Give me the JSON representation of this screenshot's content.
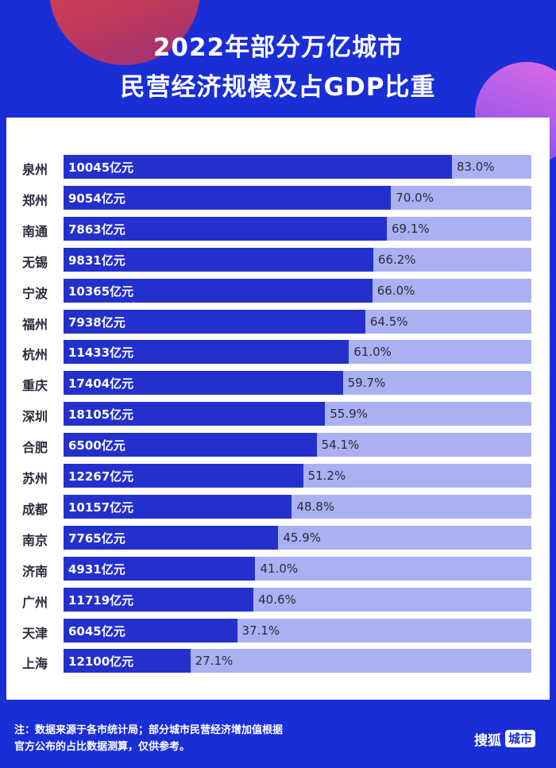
{
  "header": {
    "title_line1": "2022年部分万亿城市",
    "title_line2": "民营经济规模及占GDP比重"
  },
  "chart_data": {
    "type": "bar",
    "orientation": "horizontal",
    "title": "2022年部分万亿城市民营经济规模及占GDP比重",
    "value_unit": "%",
    "scale_max": 100,
    "categories": [
      "泉州",
      "郑州",
      "南通",
      "无锡",
      "宁波",
      "福州",
      "杭州",
      "重庆",
      "深圳",
      "合肥",
      "苏州",
      "成都",
      "南京",
      "济南",
      "广州",
      "天津",
      "上海"
    ],
    "values": [
      83.0,
      70.0,
      69.1,
      66.2,
      66.0,
      64.5,
      61.0,
      59.7,
      55.9,
      54.1,
      51.2,
      48.8,
      45.9,
      41.0,
      40.6,
      37.1,
      27.1
    ],
    "value_labels": [
      "83.0%",
      "70.0%",
      "69.1%",
      "66.2%",
      "66.0%",
      "64.5%",
      "61.0%",
      "59.7%",
      "55.9%",
      "54.1%",
      "51.2%",
      "48.8%",
      "45.9%",
      "41.0%",
      "40.6%",
      "37.1%",
      "27.1%"
    ],
    "bar_labels": [
      "10045亿元",
      "9054亿元",
      "7863亿元",
      "9831亿元",
      "10365亿元",
      "7938亿元",
      "11433亿元",
      "17404亿元",
      "18105亿元",
      "6500亿元",
      "12267亿元",
      "10157亿元",
      "7765亿元",
      "4931亿元",
      "11719亿元",
      "6045亿元",
      "12100亿元"
    ]
  },
  "footer": {
    "note_line1": "注：数据来源于各市统计局；部分城市民营经济增加值根据",
    "note_line2": "官方公布的占比数据测算，仅供参考。",
    "brand_name": "搜狐",
    "brand_tag": "城市"
  },
  "colors": {
    "background": "#1a2ed6",
    "bar": "#2430cc",
    "track": "#a9b1f2"
  }
}
